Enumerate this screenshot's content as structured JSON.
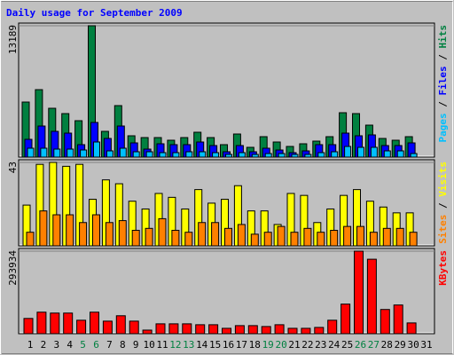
{
  "chart_data": [
    {
      "type": "bar",
      "title": "Daily usage for September 2009",
      "title_color": "#0000ff",
      "ylim": [
        0,
        13189
      ],
      "yticks": [
        13189
      ],
      "legend_separator": " / ",
      "series": [
        {
          "name": "Hits",
          "color": "#008040",
          "values": [
            5525,
            6772,
            4901,
            4367,
            3654,
            13189,
            2584,
            5169,
            2139,
            1960,
            1960,
            1693,
            1960,
            2495,
            1960,
            1248,
            2317,
            980,
            2050,
            1515,
            1069,
            1337,
            1604,
            2050,
            4456,
            4367,
            3208,
            1871,
            1693,
            2050,
            0
          ]
        },
        {
          "name": "Files",
          "color": "#0000ff",
          "values": [
            1782,
            3119,
            2584,
            2406,
            1248,
            3475,
            1871,
            3119,
            1426,
            802,
            1337,
            1248,
            1248,
            1515,
            1158,
            535,
            1158,
            535,
            891,
            713,
            446,
            624,
            1248,
            1248,
            2406,
            2139,
            2228,
            1158,
            1158,
            1426,
            0
          ]
        },
        {
          "name": "Pages",
          "color": "#00c0ff",
          "values": [
            891,
            891,
            802,
            802,
            713,
            1515,
            624,
            891,
            535,
            535,
            446,
            446,
            535,
            535,
            446,
            267,
            446,
            267,
            356,
            356,
            267,
            267,
            446,
            535,
            1069,
            980,
            980,
            624,
            624,
            356,
            0
          ]
        }
      ]
    },
    {
      "type": "bar",
      "ylim": [
        0,
        43
      ],
      "yticks": [
        43
      ],
      "legend_separator": " / ",
      "series": [
        {
          "name": "Visits",
          "color": "#ffff00",
          "values": [
            21,
            42,
            43,
            41,
            42,
            24,
            34,
            32,
            23,
            19,
            27,
            25,
            19,
            29,
            22,
            24,
            31,
            18,
            18,
            11,
            27,
            26,
            12,
            19,
            26,
            29,
            23,
            20,
            17,
            17,
            0
          ]
        },
        {
          "name": "Sites",
          "color": "#ff8000",
          "values": [
            7,
            18,
            16,
            16,
            12,
            16,
            12,
            13,
            8,
            9,
            14,
            8,
            7,
            12,
            12,
            9,
            11,
            6,
            7,
            10,
            7,
            9,
            7,
            8,
            10,
            10,
            7,
            9,
            9,
            7,
            0
          ]
        }
      ]
    },
    {
      "type": "bar",
      "ylim": [
        0,
        293934
      ],
      "yticks": [
        293934
      ],
      "categories": [
        "1",
        "2",
        "3",
        "4",
        "5",
        "6",
        "7",
        "8",
        "9",
        "10",
        "11",
        "12",
        "13",
        "14",
        "15",
        "16",
        "17",
        "18",
        "19",
        "20",
        "21",
        "22",
        "23",
        "24",
        "25",
        "26",
        "27",
        "28",
        "29",
        "30",
        "31"
      ],
      "label_colors": [
        "#000000",
        "#000000",
        "#000000",
        "#000000",
        "#008040",
        "#008040",
        "#000000",
        "#000000",
        "#000000",
        "#000000",
        "#000000",
        "#008040",
        "#008040",
        "#000000",
        "#000000",
        "#000000",
        "#000000",
        "#000000",
        "#008040",
        "#008040",
        "#000000",
        "#000000",
        "#000000",
        "#000000",
        "#000000",
        "#008040",
        "#008040",
        "#000000",
        "#000000",
        "#000000",
        "#000000"
      ],
      "series": [
        {
          "name": "KBytes",
          "color": "#ff0000",
          "values": [
            54315,
            76680,
            73485,
            73485,
            47925,
            76680,
            44730,
            63900,
            44730,
            12780,
            35145,
            35145,
            35145,
            31950,
            31950,
            19170,
            28755,
            28755,
            25560,
            31950,
            19170,
            19170,
            22365,
            47925,
            105435,
            293934,
            265185,
            86265,
            102240,
            38340,
            0
          ]
        }
      ]
    }
  ]
}
